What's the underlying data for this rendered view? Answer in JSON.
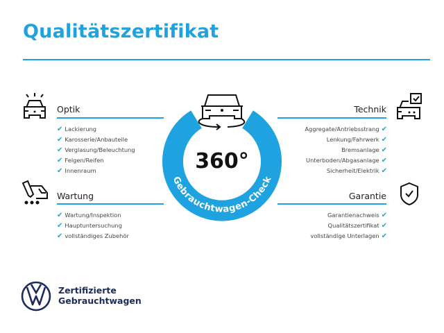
{
  "title": "Qualitätszertifikat",
  "center": {
    "big": "360°",
    "ring_text": "Gebrauchtwagen-Check",
    "ring_color": "#1fa3e0"
  },
  "sections": {
    "optik": {
      "heading": "Optik",
      "icon": "car-lights-icon",
      "items": [
        "Lackierung",
        "Karosserie/Anbauteile",
        "Verglasung/Beleuchtung",
        "Felgen/Reifen",
        "Innenraum"
      ]
    },
    "wartung": {
      "heading": "Wartung",
      "icon": "service-car-icon",
      "items": [
        "Wartung/Inspektion",
        "Hauptuntersuchung",
        "vollständiges Zubehör"
      ]
    },
    "technik": {
      "heading": "Technik",
      "icon": "car-checkbox-icon",
      "items": [
        "Aggregate/Antriebsstrang",
        "Lenkung/Fahrwerk",
        "Bremsanlage",
        "Unterboden/Abgasanlage",
        "Sicherheit/Elektrik"
      ]
    },
    "garantie": {
      "heading": "Garantie",
      "icon": "shield-check-icon",
      "items": [
        "Garantienachweis",
        "Qualitätszertifikat",
        "vollständige Unterlagen"
      ]
    }
  },
  "check_glyph": "✔",
  "footer": {
    "line1": "Zertifizierte",
    "line2": "Gebrauchtwagen",
    "logo": "VW"
  },
  "colors": {
    "accent": "#1fa3e0",
    "brand": "#1c2b5a"
  }
}
